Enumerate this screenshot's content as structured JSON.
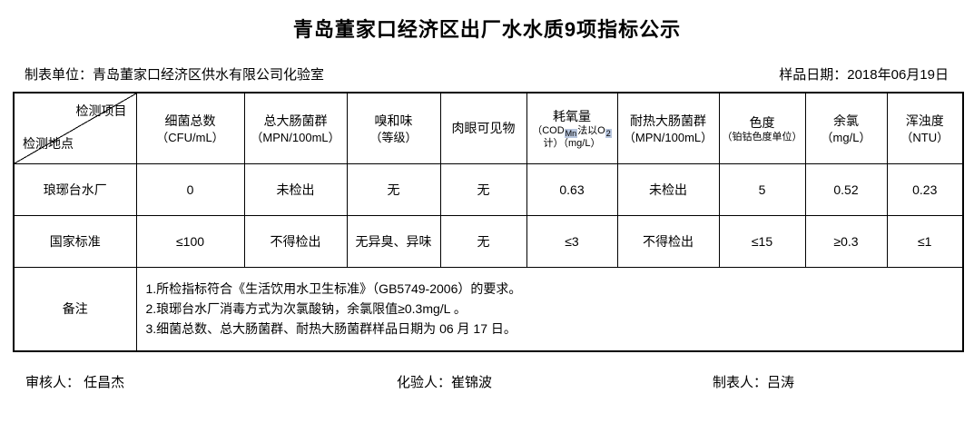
{
  "title": "青岛董家口经济区出厂水水质9项指标公示",
  "meta": {
    "org": "制表单位：青岛董家口经济区供水有限公司化验室",
    "sample_date": "样品日期：2018年06月19日"
  },
  "table": {
    "corner": {
      "top": "检测项目",
      "bottom": "检测地点"
    },
    "columns": [
      {
        "name": "细菌总数",
        "unit": "（CFU/mL）"
      },
      {
        "name": "总大肠菌群",
        "unit": "（MPN/100mL）"
      },
      {
        "name": "嗅和味",
        "unit": "（等级）"
      },
      {
        "name": "肉眼可见物",
        "unit": ""
      },
      {
        "name": "耗氧量",
        "small": true,
        "unit_parts": [
          {
            "t": "（COD"
          },
          {
            "t": "Mn",
            "sub": true
          },
          {
            "t": "法以O"
          },
          {
            "t": "2",
            "sub": true
          },
          {
            "t": "计）（mg/L）"
          }
        ]
      },
      {
        "name": "耐热大肠菌群",
        "unit": "（MPN/100mL）"
      },
      {
        "name": "色度",
        "unit": "（铂钴色度单位）",
        "small": true
      },
      {
        "name": "余氯",
        "unit": "（mg/L）"
      },
      {
        "name": "浑浊度",
        "unit": "（NTU）"
      }
    ],
    "rows": [
      {
        "label": "琅琊台水厂",
        "values": [
          "0",
          "未检出",
          "无",
          "无",
          "0.63",
          "未检出",
          "5",
          "0.52",
          "0.23"
        ]
      },
      {
        "label": "国家标准",
        "values": [
          "≤100",
          "不得检出",
          "无异臭、异味",
          "无",
          "≤3",
          "不得检出",
          "≤15",
          "≥0.3",
          "≤1"
        ]
      }
    ],
    "remarks": {
      "label": "备注",
      "lines": [
        "1.所检指标符合《生活饮用水卫生标准》（GB5749-2006）的要求。",
        "2.琅琊台水厂消毒方式为次氯酸钠，余氯限值≥0.3mg/L 。",
        "3.细菌总数、总大肠菌群、耐热大肠菌群样品日期为 06 月 17 日。"
      ]
    }
  },
  "footer": {
    "reviewer": "审核人： 任昌杰",
    "tester": "化验人：崔锦波",
    "preparer": "制表人：吕涛"
  },
  "colors": {
    "border": "#000000",
    "subscript_highlight": "#b8c6de"
  }
}
